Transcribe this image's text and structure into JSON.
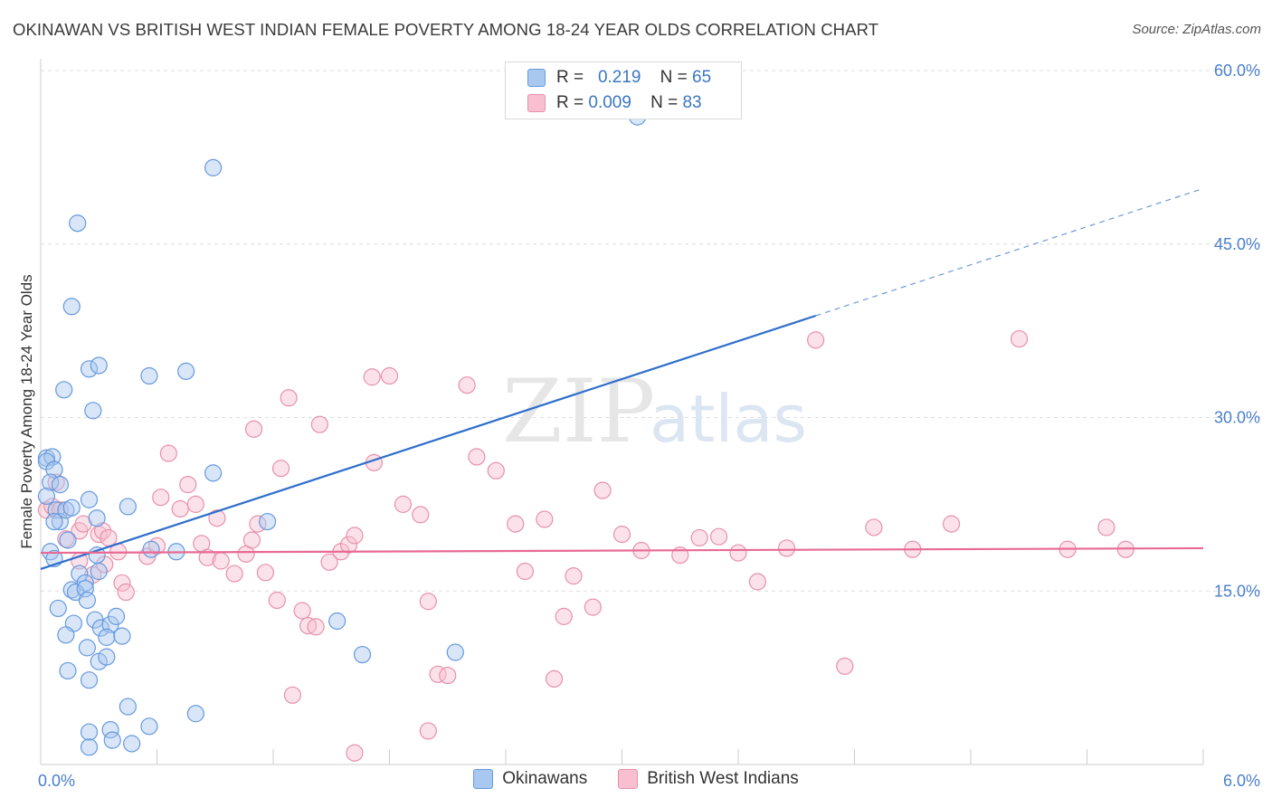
{
  "title": "OKINAWAN VS BRITISH WEST INDIAN FEMALE POVERTY AMONG 18-24 YEAR OLDS CORRELATION CHART",
  "source": "Source: ZipAtlas.com",
  "watermark": {
    "zip": "ZIP",
    "atlas": "atlas"
  },
  "legend": {
    "rows": [
      {
        "r_label": "R =",
        "r_value": "0.219",
        "n_label": "N =",
        "n_value": "65"
      },
      {
        "r_label": "R =",
        "r_value": "0.009",
        "n_label": "N =",
        "n_value": "83"
      }
    ]
  },
  "bottom_legend": [
    "Okinawans",
    "British West Indians"
  ],
  "colors": {
    "okinawan_fill": "#a9c8f0",
    "okinawan_stroke": "#6699dd",
    "okinawan_line": "#2f6fcc",
    "bwi_fill": "#f7bfd0",
    "bwi_stroke": "#e890ab",
    "bwi_line": "#e86a94",
    "tick_text": "#4a7fcc",
    "grid": "#dddddd"
  },
  "chart_data": {
    "type": "scatter",
    "xlabel": "",
    "ylabel": "Female Poverty Among 18-24 Year Olds",
    "xlim": [
      0,
      6
    ],
    "ylim": [
      0,
      60
    ],
    "x_tick_labels": [
      "0.0%",
      "6.0%"
    ],
    "y_ticks": [
      15,
      30,
      45,
      60
    ],
    "y_tick_labels": [
      "15.0%",
      "30.0%",
      "45.0%",
      "60.0%"
    ],
    "grid": "horizontal dashed",
    "series": [
      {
        "name": "Okinawans",
        "r": 0.219,
        "n": 65,
        "trend": {
          "x": [
            0,
            4.0
          ],
          "y": [
            16.9,
            38.8
          ],
          "extended_to": [
            6.0,
            49.8
          ]
        },
        "points": [
          [
            0.03,
            26.5
          ],
          [
            0.06,
            26.6
          ],
          [
            0.03,
            26.2
          ],
          [
            0.07,
            25.5
          ],
          [
            0.05,
            24.4
          ],
          [
            0.1,
            24.2
          ],
          [
            0.03,
            23.2
          ],
          [
            0.08,
            22.0
          ],
          [
            0.1,
            21.0
          ],
          [
            0.07,
            21.0
          ],
          [
            0.13,
            22.0
          ],
          [
            0.16,
            22.2
          ],
          [
            0.25,
            22.9
          ],
          [
            0.05,
            18.4
          ],
          [
            0.07,
            17.8
          ],
          [
            0.14,
            19.4
          ],
          [
            0.29,
            21.3
          ],
          [
            0.29,
            18.1
          ],
          [
            0.2,
            16.5
          ],
          [
            0.23,
            15.7
          ],
          [
            0.16,
            15.1
          ],
          [
            0.18,
            14.9
          ],
          [
            0.23,
            15.2
          ],
          [
            0.24,
            14.2
          ],
          [
            0.3,
            16.7
          ],
          [
            0.09,
            13.5
          ],
          [
            0.17,
            12.2
          ],
          [
            0.28,
            12.5
          ],
          [
            0.31,
            11.8
          ],
          [
            0.36,
            12.1
          ],
          [
            0.39,
            12.8
          ],
          [
            0.13,
            11.2
          ],
          [
            0.24,
            10.1
          ],
          [
            0.34,
            11.0
          ],
          [
            0.42,
            11.1
          ],
          [
            0.3,
            8.9
          ],
          [
            0.34,
            9.3
          ],
          [
            0.25,
            7.3
          ],
          [
            0.45,
            22.3
          ],
          [
            0.7,
            18.4
          ],
          [
            0.89,
            25.2
          ],
          [
            1.17,
            21.0
          ],
          [
            1.53,
            12.4
          ],
          [
            1.66,
            9.5
          ],
          [
            2.14,
            9.7
          ],
          [
            0.25,
            34.2
          ],
          [
            0.3,
            34.5
          ],
          [
            0.56,
            33.6
          ],
          [
            0.75,
            34.0
          ],
          [
            0.27,
            30.6
          ],
          [
            0.12,
            32.4
          ],
          [
            0.16,
            39.6
          ],
          [
            0.19,
            46.8
          ],
          [
            0.89,
            51.6
          ],
          [
            3.08,
            56.0
          ],
          [
            0.14,
            8.1
          ],
          [
            0.25,
            2.8
          ],
          [
            0.36,
            3.0
          ],
          [
            0.45,
            5.0
          ],
          [
            0.56,
            3.3
          ],
          [
            0.37,
            2.1
          ],
          [
            0.47,
            1.8
          ],
          [
            0.8,
            4.4
          ],
          [
            0.25,
            1.5
          ],
          [
            0.57,
            18.6
          ]
        ]
      },
      {
        "name": "British West Indians",
        "r": 0.009,
        "n": 83,
        "trend": {
          "x": [
            0,
            6.0
          ],
          "y": [
            18.3,
            18.7
          ]
        },
        "points": [
          [
            0.03,
            22.0
          ],
          [
            0.06,
            22.3
          ],
          [
            0.08,
            24.4
          ],
          [
            0.1,
            22.0
          ],
          [
            0.13,
            19.5
          ],
          [
            0.2,
            20.2
          ],
          [
            0.22,
            20.8
          ],
          [
            0.3,
            19.9
          ],
          [
            0.32,
            20.2
          ],
          [
            0.35,
            19.6
          ],
          [
            0.2,
            17.6
          ],
          [
            0.27,
            16.4
          ],
          [
            0.33,
            17.3
          ],
          [
            0.4,
            18.4
          ],
          [
            0.42,
            15.7
          ],
          [
            0.44,
            14.9
          ],
          [
            0.55,
            18.0
          ],
          [
            0.6,
            18.9
          ],
          [
            0.66,
            26.9
          ],
          [
            0.62,
            23.1
          ],
          [
            0.72,
            22.1
          ],
          [
            0.76,
            24.2
          ],
          [
            0.8,
            22.5
          ],
          [
            0.83,
            19.1
          ],
          [
            0.86,
            17.9
          ],
          [
            0.91,
            21.3
          ],
          [
            0.93,
            17.6
          ],
          [
            1.0,
            16.5
          ],
          [
            1.06,
            18.2
          ],
          [
            1.09,
            19.4
          ],
          [
            1.12,
            20.8
          ],
          [
            1.16,
            16.6
          ],
          [
            1.24,
            25.6
          ],
          [
            1.28,
            31.7
          ],
          [
            1.1,
            29.0
          ],
          [
            1.22,
            14.2
          ],
          [
            1.35,
            13.3
          ],
          [
            1.38,
            12.0
          ],
          [
            1.42,
            11.9
          ],
          [
            1.3,
            6.0
          ],
          [
            1.44,
            29.4
          ],
          [
            1.49,
            17.5
          ],
          [
            1.55,
            18.4
          ],
          [
            1.59,
            19.0
          ],
          [
            1.62,
            19.8
          ],
          [
            1.71,
            33.5
          ],
          [
            1.8,
            33.6
          ],
          [
            1.72,
            26.1
          ],
          [
            1.87,
            22.5
          ],
          [
            1.96,
            21.6
          ],
          [
            2.0,
            14.1
          ],
          [
            2.05,
            7.8
          ],
          [
            2.1,
            7.7
          ],
          [
            2.2,
            32.8
          ],
          [
            2.25,
            26.6
          ],
          [
            2.35,
            25.4
          ],
          [
            2.45,
            20.8
          ],
          [
            2.5,
            16.7
          ],
          [
            2.6,
            21.2
          ],
          [
            2.65,
            7.4
          ],
          [
            2.7,
            12.8
          ],
          [
            2.75,
            16.3
          ],
          [
            2.85,
            13.6
          ],
          [
            2.9,
            23.7
          ],
          [
            3.0,
            19.9
          ],
          [
            3.1,
            18.5
          ],
          [
            3.3,
            18.1
          ],
          [
            3.4,
            19.6
          ],
          [
            3.5,
            19.7
          ],
          [
            3.6,
            18.3
          ],
          [
            3.7,
            15.8
          ],
          [
            3.85,
            18.7
          ],
          [
            4.0,
            36.7
          ],
          [
            4.15,
            8.5
          ],
          [
            4.3,
            20.5
          ],
          [
            4.5,
            18.6
          ],
          [
            4.7,
            20.8
          ],
          [
            5.05,
            36.8
          ],
          [
            5.3,
            18.6
          ],
          [
            5.5,
            20.5
          ],
          [
            5.6,
            18.6
          ],
          [
            1.62,
            1.0
          ],
          [
            2.0,
            2.9
          ]
        ]
      }
    ]
  }
}
